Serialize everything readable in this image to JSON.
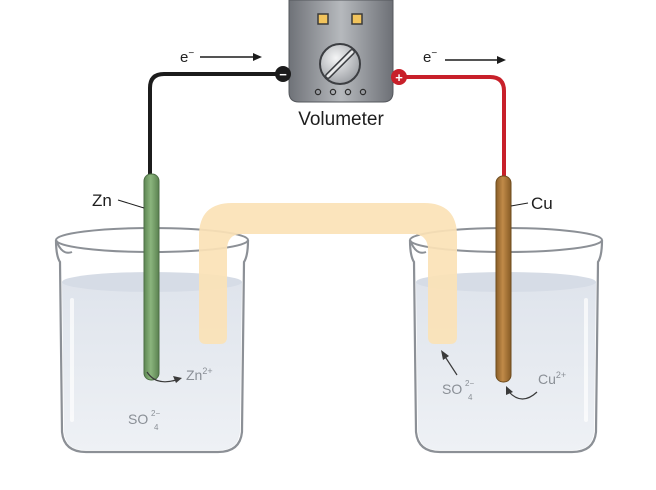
{
  "meter": {
    "label": "Volumeter",
    "negative_symbol": "−",
    "positive_symbol": "+"
  },
  "electron_flow": {
    "left": {
      "base": "e",
      "sup": "−"
    },
    "right": {
      "base": "e",
      "sup": "−"
    }
  },
  "electrodes": {
    "anode": "Zn",
    "cathode": "Cu"
  },
  "ions": {
    "left_cation": {
      "base": "Zn",
      "sup": "2+"
    },
    "left_anion": {
      "base": "SO",
      "sup": "2−",
      "sub": "4"
    },
    "right_anion": {
      "base": "SO",
      "sup": "2−",
      "sub": "4"
    },
    "right_cation": {
      "base": "Cu",
      "sup": "2+"
    }
  },
  "colors": {
    "wire_negative": "#1c1c1c",
    "wire_positive": "#c8202a",
    "zinc_electrode": "#6f9a62",
    "copper_electrode": "#a87838",
    "salt_bridge": "#fbe2b6",
    "solution": "#e3e7ee",
    "meter_body": "#8e9196"
  },
  "icons": [
    "voltmeter-icon",
    "dial-icon",
    "negative-terminal-icon",
    "positive-terminal-icon"
  ]
}
